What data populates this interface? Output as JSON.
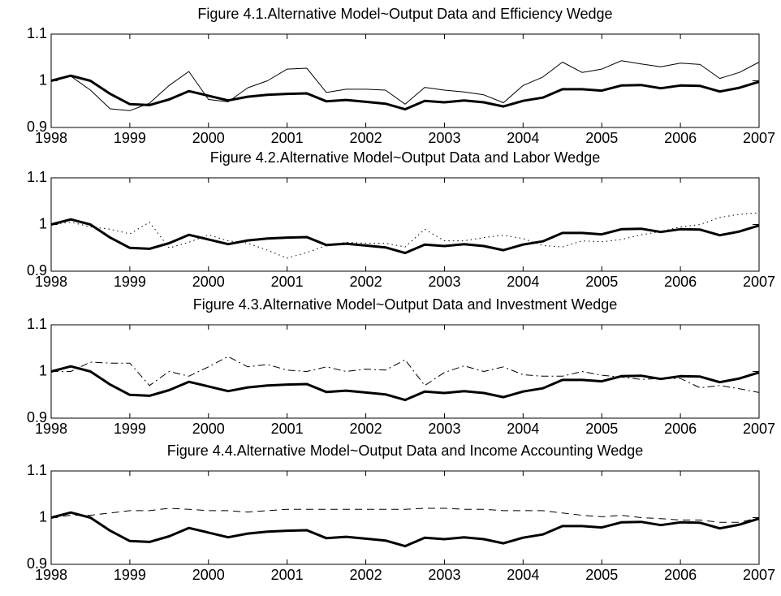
{
  "chart_data": [
    {
      "type": "line",
      "title": "Figure 4.1.Alternative Model~Output Data and Efficiency Wedge",
      "x": [
        1998,
        1998.25,
        1998.5,
        1998.75,
        1999,
        1999.25,
        1999.5,
        1999.75,
        2000,
        2000.25,
        2000.5,
        2000.75,
        2001,
        2001.25,
        2001.5,
        2001.75,
        2002,
        2002.25,
        2002.5,
        2002.75,
        2003,
        2003.25,
        2003.5,
        2003.75,
        2004,
        2004.25,
        2004.5,
        2004.75,
        2005,
        2005.25,
        2005.5,
        2005.75,
        2006,
        2006.25,
        2006.5,
        2006.75,
        2007
      ],
      "series": [
        {
          "color": "#000000",
          "linestyle": "solid",
          "values": [
            1.0,
            1.011,
            1.0,
            0.972,
            0.95,
            0.948,
            0.96,
            0.978,
            0.968,
            0.958,
            0.966,
            0.97,
            0.972,
            0.973,
            0.956,
            0.959,
            0.955,
            0.951,
            0.939,
            0.957,
            0.954,
            0.958,
            0.954,
            0.945,
            0.957,
            0.964,
            0.982,
            0.982,
            0.979,
            0.99,
            0.991,
            0.984,
            0.99,
            0.989,
            0.977,
            0.985,
            0.998
          ]
        },
        {
          "color": "#000000",
          "linestyle": "solid",
          "values": [
            1.0,
            1.01,
            0.98,
            0.94,
            0.936,
            0.952,
            0.99,
            1.02,
            0.96,
            0.955,
            0.985,
            1.0,
            1.025,
            1.027,
            0.975,
            0.982,
            0.982,
            0.98,
            0.95,
            0.986,
            0.98,
            0.976,
            0.97,
            0.953,
            0.99,
            1.008,
            1.04,
            1.018,
            1.025,
            1.043,
            1.036,
            1.03,
            1.038,
            1.035,
            1.005,
            1.018,
            1.04
          ]
        }
      ],
      "xlim": [
        1998,
        2007
      ],
      "xticks": [
        1998,
        1999,
        2000,
        2001,
        2002,
        2003,
        2004,
        2005,
        2006,
        2007
      ],
      "ylim": [
        0.9,
        1.1
      ],
      "yticks": [
        0.9,
        1,
        1.1
      ]
    },
    {
      "type": "line",
      "title": "Figure 4.2.Alternative Model~Output Data and Labor Wedge",
      "x": [
        1998,
        1998.25,
        1998.5,
        1998.75,
        1999,
        1999.25,
        1999.5,
        1999.75,
        2000,
        2000.25,
        2000.5,
        2000.75,
        2001,
        2001.25,
        2001.5,
        2001.75,
        2002,
        2002.25,
        2002.5,
        2002.75,
        2003,
        2003.25,
        2003.5,
        2003.75,
        2004,
        2004.25,
        2004.5,
        2004.75,
        2005,
        2005.25,
        2005.5,
        2005.75,
        2006,
        2006.25,
        2006.5,
        2006.75,
        2007
      ],
      "series": [
        {
          "color": "#000000",
          "linestyle": "solid",
          "values": [
            1.0,
            1.011,
            1.0,
            0.972,
            0.95,
            0.948,
            0.96,
            0.978,
            0.968,
            0.958,
            0.966,
            0.97,
            0.972,
            0.973,
            0.956,
            0.959,
            0.955,
            0.951,
            0.939,
            0.957,
            0.954,
            0.958,
            0.954,
            0.945,
            0.957,
            0.964,
            0.982,
            0.982,
            0.979,
            0.99,
            0.991,
            0.984,
            0.99,
            0.989,
            0.977,
            0.985,
            0.998
          ]
        },
        {
          "color": "#000000",
          "linestyle": "dotted",
          "values": [
            1.0,
            1.005,
            0.995,
            0.99,
            0.98,
            1.005,
            0.95,
            0.962,
            0.978,
            0.965,
            0.96,
            0.945,
            0.928,
            0.94,
            0.955,
            0.962,
            0.96,
            0.96,
            0.952,
            0.99,
            0.965,
            0.965,
            0.972,
            0.977,
            0.97,
            0.955,
            0.952,
            0.965,
            0.963,
            0.968,
            0.978,
            0.985,
            0.995,
            1.0,
            1.015,
            1.022,
            1.025
          ]
        }
      ],
      "xlim": [
        1998,
        2007
      ],
      "xticks": [
        1998,
        1999,
        2000,
        2001,
        2002,
        2003,
        2004,
        2005,
        2006,
        2007
      ],
      "ylim": [
        0.9,
        1.1
      ],
      "yticks": [
        0.9,
        1,
        1.1
      ]
    },
    {
      "type": "line",
      "title": "Figure 4.3.Alternative Model~Output Data and Investment Wedge",
      "x": [
        1998,
        1998.25,
        1998.5,
        1998.75,
        1999,
        1999.25,
        1999.5,
        1999.75,
        2000,
        2000.25,
        2000.5,
        2000.75,
        2001,
        2001.25,
        2001.5,
        2001.75,
        2002,
        2002.25,
        2002.5,
        2002.75,
        2003,
        2003.25,
        2003.5,
        2003.75,
        2004,
        2004.25,
        2004.5,
        2004.75,
        2005,
        2005.25,
        2005.5,
        2005.75,
        2006,
        2006.25,
        2006.5,
        2006.75,
        2007
      ],
      "series": [
        {
          "color": "#000000",
          "linestyle": "solid",
          "values": [
            1.0,
            1.011,
            1.0,
            0.972,
            0.95,
            0.948,
            0.96,
            0.978,
            0.968,
            0.958,
            0.966,
            0.97,
            0.972,
            0.973,
            0.956,
            0.959,
            0.955,
            0.951,
            0.939,
            0.957,
            0.954,
            0.958,
            0.954,
            0.945,
            0.957,
            0.964,
            0.982,
            0.982,
            0.979,
            0.99,
            0.991,
            0.984,
            0.99,
            0.989,
            0.977,
            0.985,
            0.998
          ]
        },
        {
          "color": "#000000",
          "linestyle": "dashdot",
          "values": [
            1.0,
            1.0,
            1.02,
            1.018,
            1.018,
            0.97,
            1.0,
            0.99,
            1.01,
            1.032,
            1.01,
            1.015,
            1.003,
            1.0,
            1.01,
            1.0,
            1.005,
            1.003,
            1.025,
            0.97,
            0.998,
            1.012,
            1.0,
            1.01,
            0.993,
            0.99,
            0.99,
            1.0,
            0.992,
            0.988,
            0.983,
            0.985,
            0.985,
            0.965,
            0.97,
            0.963,
            0.955
          ]
        }
      ],
      "xlim": [
        1998,
        2007
      ],
      "xticks": [
        1998,
        1999,
        2000,
        2001,
        2002,
        2003,
        2004,
        2005,
        2006,
        2007
      ],
      "ylim": [
        0.9,
        1.1
      ],
      "yticks": [
        0.9,
        1,
        1.1
      ]
    },
    {
      "type": "line",
      "title": "Figure 4.4.Alternative Model~Output Data and Income Accounting Wedge",
      "x": [
        1998,
        1998.25,
        1998.5,
        1998.75,
        1999,
        1999.25,
        1999.5,
        1999.75,
        2000,
        2000.25,
        2000.5,
        2000.75,
        2001,
        2001.25,
        2001.5,
        2001.75,
        2002,
        2002.25,
        2002.5,
        2002.75,
        2003,
        2003.25,
        2003.5,
        2003.75,
        2004,
        2004.25,
        2004.5,
        2004.75,
        2005,
        2005.25,
        2005.5,
        2005.75,
        2006,
        2006.25,
        2006.5,
        2006.75,
        2007
      ],
      "series": [
        {
          "color": "#000000",
          "linestyle": "solid",
          "values": [
            1.0,
            1.011,
            1.0,
            0.972,
            0.95,
            0.948,
            0.96,
            0.978,
            0.968,
            0.958,
            0.966,
            0.97,
            0.972,
            0.973,
            0.956,
            0.959,
            0.955,
            0.951,
            0.939,
            0.957,
            0.954,
            0.958,
            0.954,
            0.945,
            0.957,
            0.964,
            0.982,
            0.982,
            0.979,
            0.99,
            0.991,
            0.984,
            0.99,
            0.989,
            0.977,
            0.985,
            0.998
          ]
        },
        {
          "color": "#000000",
          "linestyle": "dashed",
          "values": [
            1.0,
            1.005,
            1.005,
            1.01,
            1.015,
            1.015,
            1.02,
            1.018,
            1.015,
            1.015,
            1.012,
            1.015,
            1.018,
            1.018,
            1.018,
            1.018,
            1.018,
            1.018,
            1.018,
            1.02,
            1.02,
            1.018,
            1.018,
            1.015,
            1.015,
            1.015,
            1.01,
            1.005,
            1.002,
            1.005,
            1.0,
            0.998,
            0.995,
            0.995,
            0.99,
            0.99,
            1.0
          ]
        }
      ],
      "xlim": [
        1998,
        2007
      ],
      "xticks": [
        1998,
        1999,
        2000,
        2001,
        2002,
        2003,
        2004,
        2005,
        2006,
        2007
      ],
      "ylim": [
        0.9,
        1.1
      ],
      "yticks": [
        0.9,
        1,
        1.1
      ]
    }
  ]
}
